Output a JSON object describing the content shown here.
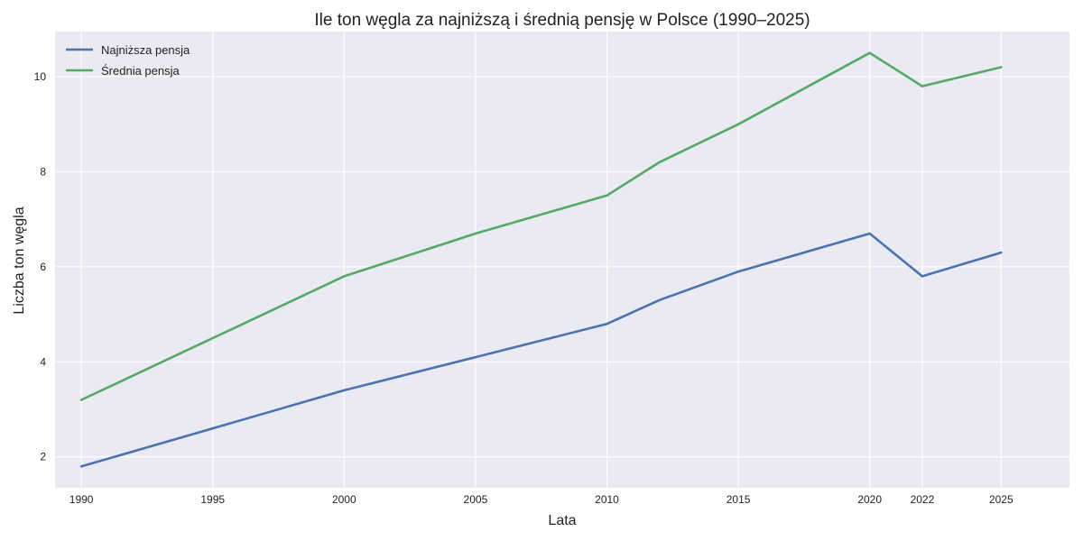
{
  "chart_data": {
    "type": "line",
    "title": "Ile ton węgla za najniższą i średnią pensję w Polsce (1990–2025)",
    "xlabel": "Lata",
    "ylabel": "Liczba ton węgla",
    "x": [
      1990,
      1995,
      2000,
      2005,
      2010,
      2012,
      2015,
      2020,
      2022,
      2025
    ],
    "xticks": [
      "1990",
      "1995",
      "2000",
      "2005",
      "2010",
      "2015",
      "2020",
      "2022",
      "2025"
    ],
    "yticks": [
      "2",
      "4",
      "6",
      "8",
      "10"
    ],
    "xlim": [
      1989,
      2027.6
    ],
    "ylim": [
      1.35,
      10.95
    ],
    "grid": true,
    "legend_position": "top-left",
    "series": [
      {
        "name": "Najniższa pensja",
        "color": "#4c72b0",
        "values": [
          1.8,
          2.6,
          3.4,
          4.1,
          4.8,
          5.3,
          5.9,
          6.7,
          5.8,
          6.3
        ]
      },
      {
        "name": "Średnia pensja",
        "color": "#55a868",
        "values": [
          3.2,
          4.5,
          5.8,
          6.7,
          7.5,
          8.2,
          9.0,
          10.5,
          9.8,
          10.2
        ]
      }
    ],
    "plot_background": "#eaeaf2"
  }
}
